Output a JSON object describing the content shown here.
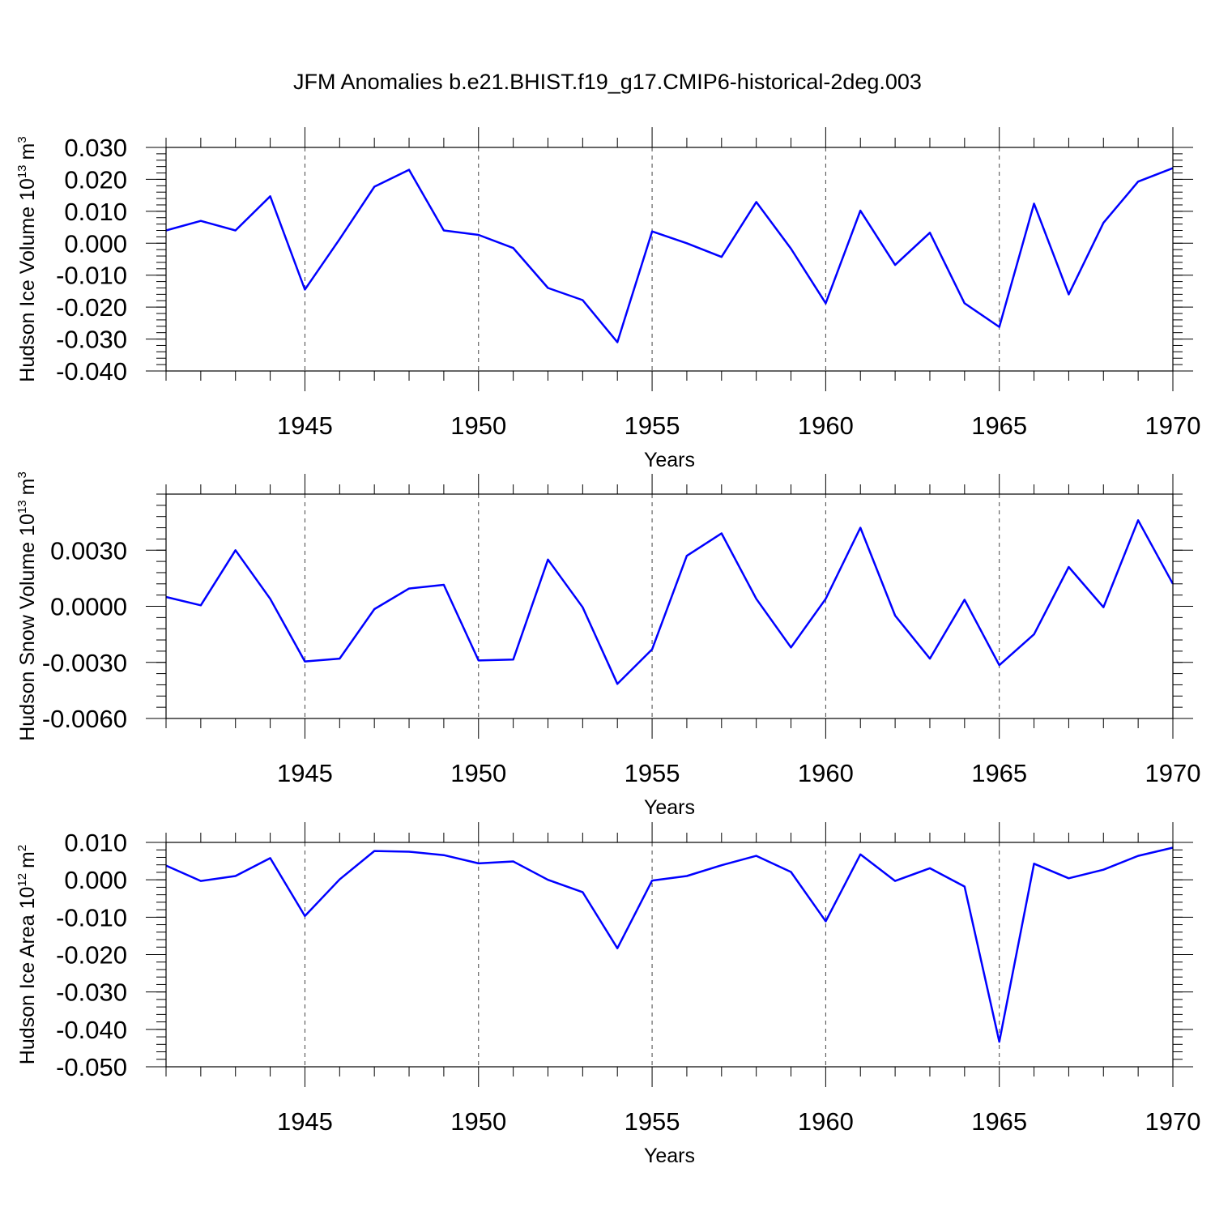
{
  "title": "JFM Anomalies b.e21.BHIST.f19_g17.CMIP6-historical-2deg.003",
  "line_color": "#0000ff",
  "chart_data": [
    {
      "type": "line",
      "id": "ice-volume",
      "ylabel": "Hudson Ice Volume 10",
      "ylabel_exp": "13",
      "ylabel_unit": "m",
      "ylabel_unit_exp": "3",
      "xlabel": "Years",
      "xlim": [
        1941,
        1970
      ],
      "ylim": [
        -0.04,
        0.03
      ],
      "x_ticks": [
        1945,
        1950,
        1955,
        1960,
        1965,
        1970
      ],
      "x_tick_labels": [
        "1945",
        "1950",
        "1955",
        "1960",
        "1965",
        "1970"
      ],
      "y_ticks": [
        0.03,
        0.02,
        0.01,
        0.0,
        -0.01,
        -0.02,
        -0.03,
        -0.04
      ],
      "y_tick_labels": [
        "0.030",
        "0.020",
        "0.010",
        "0.000",
        "-0.010",
        "-0.020",
        "-0.030",
        "-0.040"
      ],
      "y_minor_step": 0.002,
      "x": [
        1941,
        1942,
        1943,
        1944,
        1945,
        1946,
        1947,
        1948,
        1949,
        1950,
        1951,
        1952,
        1953,
        1954,
        1955,
        1956,
        1957,
        1958,
        1959,
        1960,
        1961,
        1962,
        1963,
        1964,
        1965,
        1966,
        1967,
        1968,
        1969,
        1970
      ],
      "values": [
        0.004,
        0.007,
        0.004,
        0.0147,
        -0.0145,
        0.0013,
        0.0177,
        0.023,
        0.004,
        0.0026,
        -0.0015,
        -0.014,
        -0.0178,
        -0.031,
        0.0037,
        0.0,
        -0.0043,
        0.0129,
        -0.0017,
        -0.0188,
        0.0102,
        -0.0068,
        0.0033,
        -0.0188,
        -0.0262,
        0.0124,
        -0.016,
        0.0064,
        0.0193,
        0.0235
      ]
    },
    {
      "type": "line",
      "id": "snow-volume",
      "ylabel": "Hudson Snow Volume 10",
      "ylabel_exp": "13",
      "ylabel_unit": "m",
      "ylabel_unit_exp": "3",
      "xlabel": "Years",
      "xlim": [
        1941,
        1970
      ],
      "ylim": [
        -0.006,
        0.006
      ],
      "x_ticks": [
        1945,
        1950,
        1955,
        1960,
        1965,
        1970
      ],
      "x_tick_labels": [
        "1945",
        "1950",
        "1955",
        "1960",
        "1965",
        "1970"
      ],
      "y_ticks": [
        0.003,
        0.0,
        -0.003,
        -0.006
      ],
      "y_tick_labels": [
        "0.0030",
        "0.0000",
        "-0.0030",
        "-0.0060"
      ],
      "y_minor_step": 0.0006,
      "x": [
        1941,
        1942,
        1943,
        1944,
        1945,
        1946,
        1947,
        1948,
        1949,
        1950,
        1951,
        1952,
        1953,
        1954,
        1955,
        1956,
        1957,
        1958,
        1959,
        1960,
        1961,
        1962,
        1963,
        1964,
        1965,
        1966,
        1967,
        1968,
        1969,
        1970
      ],
      "values": [
        0.0005,
        5e-05,
        0.003,
        0.0004,
        -0.00295,
        -0.0028,
        -0.00015,
        0.00095,
        0.00115,
        -0.0029,
        -0.00285,
        0.0025,
        -5e-05,
        -0.00415,
        -0.0023,
        0.0027,
        0.0039,
        0.0004,
        -0.0022,
        0.0004,
        0.0042,
        -0.0005,
        -0.0028,
        0.00035,
        -0.00315,
        -0.0015,
        0.0021,
        -5e-05,
        0.0046,
        0.0012
      ]
    },
    {
      "type": "line",
      "id": "ice-area",
      "ylabel": "Hudson Ice Area 10",
      "ylabel_exp": "12",
      "ylabel_unit": "m",
      "ylabel_unit_exp": "2",
      "xlabel": "Years",
      "xlim": [
        1941,
        1970
      ],
      "ylim": [
        -0.05,
        0.01
      ],
      "x_ticks": [
        1945,
        1950,
        1955,
        1960,
        1965,
        1970
      ],
      "x_tick_labels": [
        "1945",
        "1950",
        "1955",
        "1960",
        "1965",
        "1970"
      ],
      "y_ticks": [
        0.01,
        0.0,
        -0.01,
        -0.02,
        -0.03,
        -0.04,
        -0.05
      ],
      "y_tick_labels": [
        "0.010",
        "0.000",
        "-0.010",
        "-0.020",
        "-0.030",
        "-0.040",
        "-0.050"
      ],
      "y_minor_step": 0.002,
      "x": [
        1941,
        1942,
        1943,
        1944,
        1945,
        1946,
        1947,
        1948,
        1949,
        1950,
        1951,
        1952,
        1953,
        1954,
        1955,
        1956,
        1957,
        1958,
        1959,
        1960,
        1961,
        1962,
        1963,
        1964,
        1965,
        1966,
        1967,
        1968,
        1969,
        1970
      ],
      "values": [
        0.0038,
        -0.0003,
        0.001,
        0.0058,
        -0.0097,
        0.0001,
        0.0077,
        0.0075,
        0.0066,
        0.0044,
        0.0049,
        0.0,
        -0.0033,
        -0.0183,
        -0.0002,
        0.001,
        0.0039,
        0.0064,
        0.0021,
        -0.0111,
        0.0068,
        -0.0003,
        0.0031,
        -0.0018,
        -0.0433,
        0.0043,
        0.0004,
        0.0027,
        0.0064,
        0.0086
      ]
    }
  ]
}
